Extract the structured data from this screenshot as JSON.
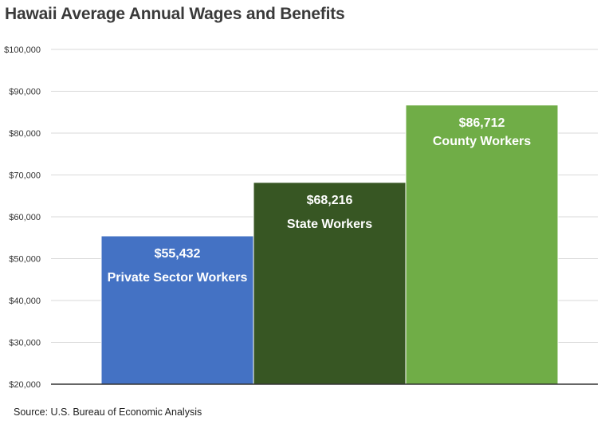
{
  "chart_data": {
    "type": "bar",
    "title": "Hawaii Average Annual Wages and Benefits",
    "source": "Source: U.S. Bureau of Economic Analysis",
    "categories": [
      "Private Sector Workers",
      "State Workers",
      "County Workers"
    ],
    "values": [
      55432,
      68216,
      86712
    ],
    "value_labels": [
      "$55,432",
      "$68,216",
      "$86,712"
    ],
    "colors": [
      "#4472c4",
      "#375623",
      "#70ad47"
    ],
    "ylim": [
      20000,
      100000
    ],
    "yticks": [
      20000,
      30000,
      40000,
      50000,
      60000,
      70000,
      80000,
      90000,
      100000
    ],
    "ytick_labels": [
      "$20,000",
      "$30,000",
      "$40,000",
      "$50,000",
      "$60,000",
      "$70,000",
      "$80,000",
      "$90,000",
      "$100,000"
    ],
    "grid": true,
    "legend": false
  }
}
